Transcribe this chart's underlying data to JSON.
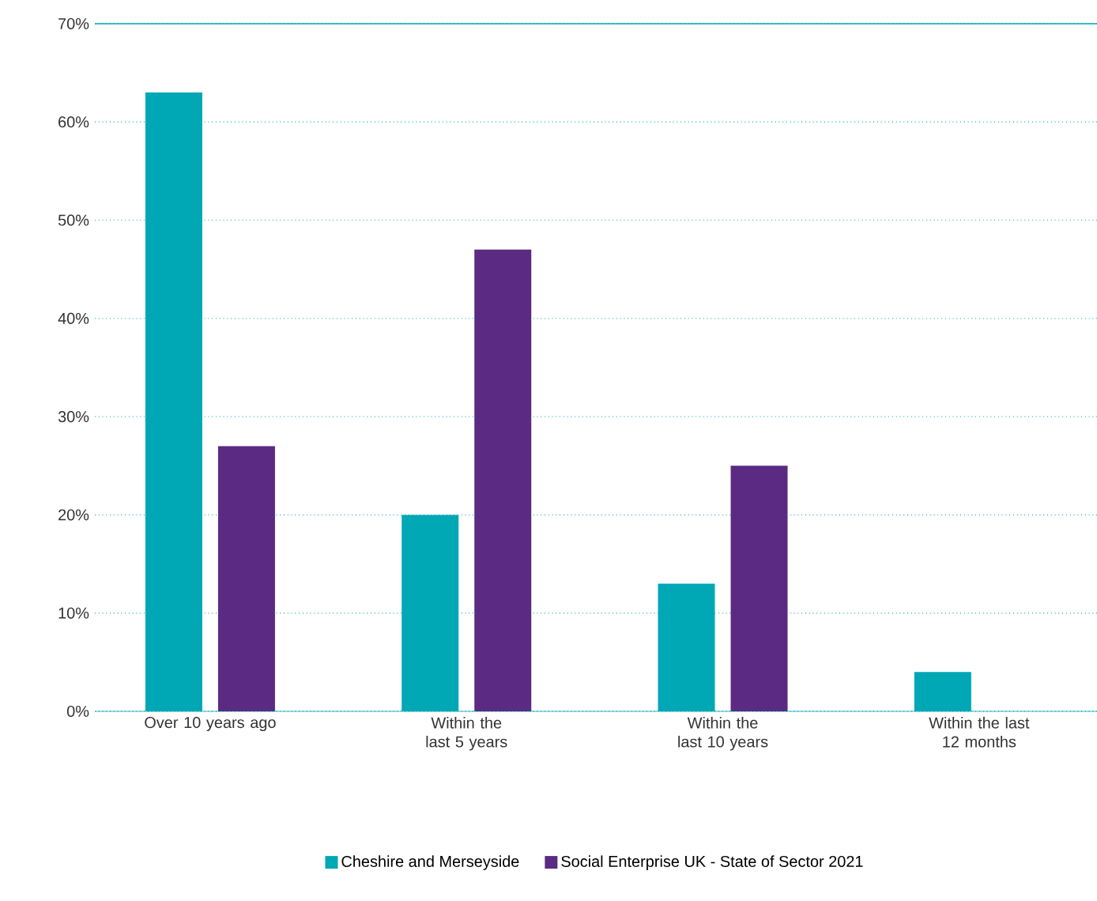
{
  "chart_data": {
    "type": "bar",
    "categories": [
      "Over 10 years ago",
      "Within the last 5 years",
      "Within the last 10 years",
      "Within the last 12 months"
    ],
    "series": [
      {
        "name": "Cheshire and Merseyside",
        "color": "#00a7b5",
        "values": [
          63,
          20,
          13,
          4
        ]
      },
      {
        "name": "Social Enterprise UK - State of Sector 2021",
        "color": "#5b2a82",
        "values": [
          27,
          47,
          25,
          0
        ]
      }
    ],
    "ylim": [
      0,
      70
    ],
    "yticks": [
      {
        "value": 0,
        "label": "0%"
      },
      {
        "value": 10,
        "label": "10%"
      },
      {
        "value": 20,
        "label": "20%"
      },
      {
        "value": 30,
        "label": "30%"
      },
      {
        "value": 40,
        "label": "40%"
      },
      {
        "value": 50,
        "label": "50%"
      },
      {
        "value": 60,
        "label": "60%"
      },
      {
        "value": 70,
        "label": "70%"
      }
    ],
    "grid": "y",
    "legend": "bottom"
  }
}
